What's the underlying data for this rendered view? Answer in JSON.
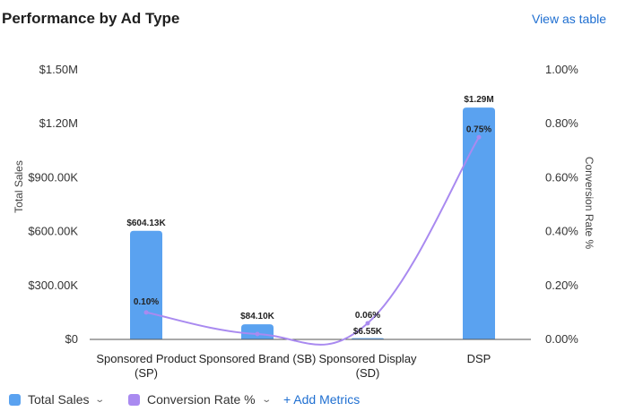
{
  "header": {
    "title": "Performance by Ad Type",
    "view_table_label": "View as table"
  },
  "legend": {
    "items": [
      {
        "label": "Total Sales",
        "color": "#5aa2f0"
      },
      {
        "label": "Conversion Rate %",
        "color": "#a98af0"
      }
    ],
    "add_metrics_label": "+ Add Metrics"
  },
  "chart_data": {
    "type": "bar",
    "categories": [
      [
        "Sponsored Product",
        "(SP)"
      ],
      [
        "Sponsored Brand (SB)"
      ],
      [
        "Sponsored Display",
        "(SD)"
      ],
      [
        "DSP"
      ]
    ],
    "series": [
      {
        "name": "Total Sales",
        "type": "bar",
        "axis": "left",
        "color": "#5aa2f0",
        "values": [
          604130,
          84100,
          6550,
          1290000
        ],
        "labels": [
          "$604.13K",
          "$84.10K",
          "$6.55K",
          "$1.29M"
        ]
      },
      {
        "name": "Conversion Rate %",
        "type": "line",
        "axis": "right",
        "color": "#a98af0",
        "values": [
          0.1,
          0.02,
          0.06,
          0.75
        ],
        "labels": [
          "0.10%",
          "",
          "0.06%",
          "0.75%"
        ]
      }
    ],
    "y_left": {
      "label": "Total Sales",
      "range": [
        0,
        1500000
      ],
      "ticks": [
        0,
        300000,
        600000,
        900000,
        1200000,
        1500000
      ],
      "tick_labels": [
        "$0",
        "$300.00K",
        "$600.00K",
        "$900.00K",
        "$1.20M",
        "$1.50M"
      ]
    },
    "y_right": {
      "label": "Conversion Rate %",
      "range": [
        0,
        1.0
      ],
      "ticks": [
        0,
        0.2,
        0.4,
        0.6,
        0.8,
        1.0
      ],
      "tick_labels": [
        "0.00%",
        "0.20%",
        "0.40%",
        "0.60%",
        "0.80%",
        "1.00%"
      ]
    },
    "grid": false,
    "legend_position": "bottom-left"
  }
}
